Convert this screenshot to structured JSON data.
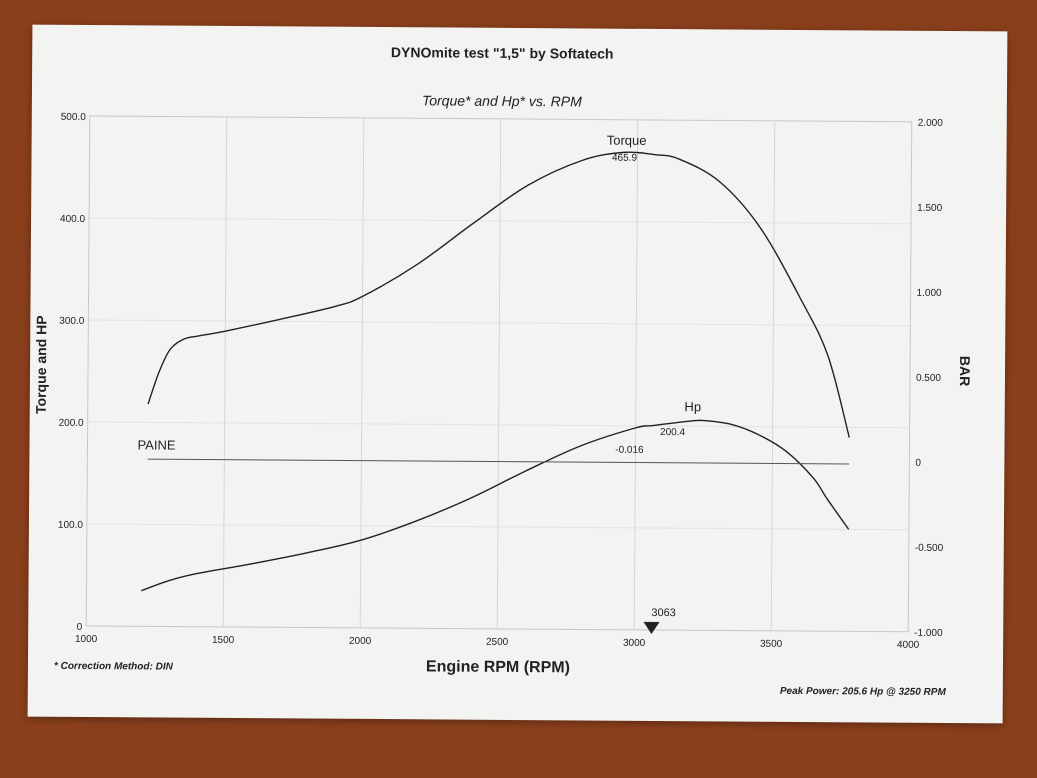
{
  "header": {
    "title": "DYNOmite test \"1,5\" by Softatech",
    "subtitle": "Torque* and Hp* vs. RPM"
  },
  "footer": {
    "correction_note": "* Correction Method: DIN",
    "peak_power": "Peak Power: 205.6 Hp @ 3250 RPM"
  },
  "chart_data": {
    "type": "line",
    "title": "Torque* and Hp* vs. RPM",
    "xlabel": "Engine RPM (RPM)",
    "ylabel": "Torque and HP",
    "y2label": "BAR",
    "xlim": [
      1000,
      4000
    ],
    "ylim": [
      0,
      500
    ],
    "y2lim": [
      -1.0,
      2.0
    ],
    "x_ticks": [
      "1000",
      "1500",
      "2000",
      "2500",
      "3000",
      "3500",
      "4000"
    ],
    "y_ticks": [
      "0",
      "100.0",
      "200.0",
      "300.0",
      "400.0",
      "500.0"
    ],
    "y2_ticks": [
      "-1.000",
      "-0.500",
      "0",
      "0.500",
      "1.000",
      "1.500",
      "2.000"
    ],
    "grid": true,
    "series": [
      {
        "name": "Torque",
        "axis": "left",
        "x": [
          1220,
          1260,
          1300,
          1350,
          1400,
          1500,
          1700,
          1900,
          2000,
          2200,
          2400,
          2600,
          2800,
          2950,
          3063,
          3150,
          3300,
          3450,
          3600,
          3700,
          3780
        ],
        "y": [
          218,
          250,
          272,
          282,
          285,
          290,
          302,
          315,
          325,
          357,
          397,
          435,
          460,
          468,
          466,
          462,
          440,
          395,
          325,
          270,
          190
        ]
      },
      {
        "name": "Hp",
        "axis": "left",
        "x": [
          1200,
          1300,
          1400,
          1600,
          1800,
          2000,
          2200,
          2400,
          2600,
          2800,
          3000,
          3063,
          3200,
          3250,
          3350,
          3450,
          3550,
          3650,
          3700,
          3780
        ],
        "y": [
          35,
          45,
          52,
          62,
          73,
          86,
          105,
          128,
          155,
          180,
          198,
          200.4,
          205,
          205.6,
          202,
          192,
          176,
          150,
          130,
          100
        ]
      },
      {
        "name": "PAINE",
        "axis": "right",
        "x": [
          1220,
          3780
        ],
        "y": [
          -0.016,
          -0.016
        ]
      }
    ],
    "annotations": {
      "torque_value": "465.9",
      "hp_value": "200.4",
      "paine_value": "-0.016",
      "marker_rpm": "3063"
    }
  }
}
